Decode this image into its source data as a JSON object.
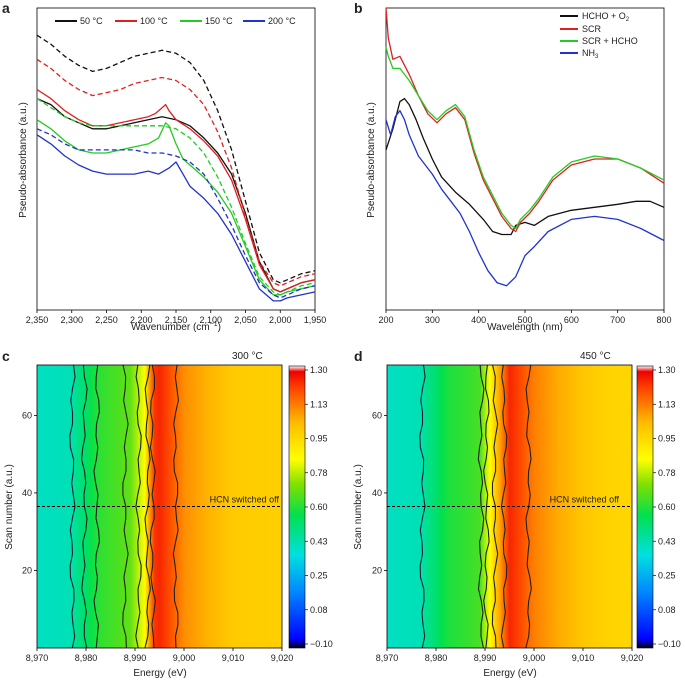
{
  "chart_data": [
    {
      "panel": "a",
      "type": "line",
      "xlabel": "Wavenumber (cm",
      "xlabel_sup": "−1",
      "xlabel_close": ")",
      "ylabel": "Pseudo-absorbance (a.u.)",
      "xlim": [
        2350,
        1950
      ],
      "ylim": [
        0,
        1
      ],
      "xticks": [
        2350,
        2300,
        2250,
        2200,
        2150,
        2100,
        2050,
        2000,
        1950
      ],
      "xtick_labels": [
        "2,350",
        "2,300",
        "2,250",
        "2,200",
        "2,150",
        "2,100",
        "2,050",
        "2,000",
        "1,950"
      ],
      "legend": "top",
      "legend_labels": [
        "50 °C",
        "100 °C",
        "150 °C",
        "200 °C"
      ],
      "series": [
        {
          "name": "50 °C",
          "color": "#111111",
          "dash": false,
          "x": [
            2350,
            2330,
            2310,
            2290,
            2270,
            2250,
            2230,
            2210,
            2190,
            2170,
            2150,
            2130,
            2110,
            2090,
            2070,
            2050,
            2030,
            2010,
            2000,
            1990,
            1970,
            1950
          ],
          "y": [
            0.7,
            0.68,
            0.64,
            0.62,
            0.6,
            0.6,
            0.61,
            0.62,
            0.63,
            0.64,
            0.63,
            0.61,
            0.57,
            0.52,
            0.45,
            0.32,
            0.16,
            0.07,
            0.06,
            0.07,
            0.09,
            0.1
          ]
        },
        {
          "name": "50 °C",
          "color": "#111111",
          "dash": true,
          "x": [
            2350,
            2330,
            2310,
            2290,
            2270,
            2250,
            2230,
            2210,
            2190,
            2170,
            2150,
            2130,
            2110,
            2090,
            2070,
            2050,
            2030,
            2010,
            2000,
            1990,
            1970,
            1950
          ],
          "y": [
            0.91,
            0.88,
            0.84,
            0.81,
            0.79,
            0.8,
            0.82,
            0.84,
            0.85,
            0.86,
            0.85,
            0.82,
            0.76,
            0.66,
            0.53,
            0.36,
            0.19,
            0.1,
            0.09,
            0.1,
            0.12,
            0.13
          ]
        },
        {
          "name": "100 °C",
          "color": "#e02020",
          "dash": false,
          "x": [
            2350,
            2330,
            2310,
            2290,
            2270,
            2250,
            2230,
            2210,
            2190,
            2180,
            2170,
            2165,
            2160,
            2150,
            2130,
            2110,
            2090,
            2070,
            2050,
            2030,
            2010,
            2000,
            1990,
            1970,
            1950
          ],
          "y": [
            0.73,
            0.7,
            0.66,
            0.63,
            0.61,
            0.61,
            0.62,
            0.63,
            0.64,
            0.65,
            0.67,
            0.68,
            0.66,
            0.63,
            0.6,
            0.56,
            0.51,
            0.43,
            0.3,
            0.15,
            0.07,
            0.06,
            0.07,
            0.09,
            0.1
          ]
        },
        {
          "name": "100 °C",
          "color": "#e02020",
          "dash": true,
          "x": [
            2350,
            2330,
            2310,
            2290,
            2270,
            2250,
            2230,
            2210,
            2190,
            2170,
            2150,
            2130,
            2110,
            2090,
            2070,
            2050,
            2030,
            2010,
            2000,
            1990,
            1970,
            1950
          ],
          "y": [
            0.83,
            0.8,
            0.76,
            0.73,
            0.71,
            0.72,
            0.73,
            0.75,
            0.76,
            0.77,
            0.76,
            0.73,
            0.68,
            0.59,
            0.47,
            0.31,
            0.16,
            0.09,
            0.08,
            0.09,
            0.11,
            0.12
          ]
        },
        {
          "name": "150 °C",
          "color": "#22cc22",
          "dash": false,
          "x": [
            2350,
            2330,
            2310,
            2290,
            2270,
            2250,
            2230,
            2210,
            2190,
            2175,
            2165,
            2160,
            2150,
            2140,
            2130,
            2110,
            2090,
            2070,
            2050,
            2030,
            2010,
            2000,
            1990,
            1970,
            1950
          ],
          "y": [
            0.63,
            0.6,
            0.56,
            0.53,
            0.52,
            0.52,
            0.53,
            0.54,
            0.55,
            0.57,
            0.62,
            0.61,
            0.55,
            0.5,
            0.48,
            0.44,
            0.39,
            0.32,
            0.21,
            0.1,
            0.05,
            0.05,
            0.06,
            0.07,
            0.08
          ]
        },
        {
          "name": "150 °C",
          "color": "#22cc22",
          "dash": true,
          "x": [
            2350,
            2330,
            2310,
            2290,
            2270,
            2250,
            2230,
            2210,
            2190,
            2170,
            2150,
            2130,
            2110,
            2090,
            2070,
            2050,
            2030,
            2010,
            2000,
            1990,
            1970,
            1950
          ],
          "y": [
            0.7,
            0.67,
            0.64,
            0.62,
            0.61,
            0.61,
            0.61,
            0.61,
            0.61,
            0.61,
            0.6,
            0.57,
            0.52,
            0.44,
            0.34,
            0.22,
            0.11,
            0.06,
            0.05,
            0.06,
            0.08,
            0.09
          ]
        },
        {
          "name": "200 °C",
          "color": "#2233cc",
          "dash": false,
          "x": [
            2350,
            2330,
            2310,
            2290,
            2270,
            2250,
            2230,
            2210,
            2190,
            2175,
            2160,
            2150,
            2140,
            2130,
            2110,
            2090,
            2070,
            2050,
            2030,
            2010,
            2000,
            1990,
            1970,
            1950
          ],
          "y": [
            0.58,
            0.55,
            0.51,
            0.48,
            0.46,
            0.45,
            0.45,
            0.45,
            0.46,
            0.45,
            0.47,
            0.49,
            0.45,
            0.41,
            0.37,
            0.32,
            0.25,
            0.16,
            0.07,
            0.03,
            0.03,
            0.04,
            0.05,
            0.06
          ]
        },
        {
          "name": "200 °C",
          "color": "#2233cc",
          "dash": true,
          "x": [
            2350,
            2330,
            2310,
            2290,
            2270,
            2250,
            2230,
            2210,
            2190,
            2170,
            2150,
            2130,
            2110,
            2090,
            2070,
            2050,
            2030,
            2010,
            2000,
            1990,
            1970,
            1950
          ],
          "y": [
            0.6,
            0.58,
            0.55,
            0.53,
            0.53,
            0.53,
            0.53,
            0.53,
            0.52,
            0.52,
            0.51,
            0.49,
            0.45,
            0.37,
            0.28,
            0.18,
            0.09,
            0.05,
            0.04,
            0.05,
            0.07,
            0.08
          ]
        }
      ]
    },
    {
      "panel": "b",
      "type": "line",
      "xlabel": "Wavelength (nm)",
      "ylabel": "Pseudo-absorbance (a.u.)",
      "xlim": [
        200,
        800
      ],
      "ylim": [
        0,
        1
      ],
      "xticks": [
        200,
        300,
        400,
        500,
        600,
        700,
        800
      ],
      "xtick_labels": [
        "200",
        "300",
        "400",
        "500",
        "600",
        "700",
        "800"
      ],
      "legend": "top-right",
      "legend_labels": [
        "HCHO + O",
        "SCR",
        "SCR + HCHO",
        "NH"
      ],
      "legend_subscripts": [
        "2",
        "",
        "",
        "3"
      ],
      "series": [
        {
          "name": "HCHO + O2",
          "color": "#111111",
          "x": [
            200,
            215,
            230,
            240,
            250,
            265,
            280,
            300,
            320,
            350,
            380,
            410,
            430,
            450,
            470,
            480,
            500,
            520,
            550,
            600,
            650,
            700,
            740,
            770,
            800
          ],
          "y": [
            0.53,
            0.6,
            0.69,
            0.7,
            0.68,
            0.63,
            0.57,
            0.5,
            0.44,
            0.39,
            0.35,
            0.3,
            0.26,
            0.25,
            0.25,
            0.28,
            0.29,
            0.28,
            0.31,
            0.33,
            0.34,
            0.35,
            0.36,
            0.36,
            0.34
          ]
        },
        {
          "name": "SCR",
          "color": "#e02020",
          "x": [
            200,
            205,
            215,
            230,
            250,
            270,
            290,
            310,
            330,
            350,
            370,
            390,
            410,
            430,
            450,
            470,
            480,
            490,
            510,
            530,
            560,
            600,
            650,
            700,
            750,
            800
          ],
          "y": [
            1.0,
            0.9,
            0.83,
            0.84,
            0.78,
            0.71,
            0.65,
            0.62,
            0.65,
            0.67,
            0.63,
            0.52,
            0.43,
            0.37,
            0.31,
            0.27,
            0.26,
            0.29,
            0.32,
            0.36,
            0.43,
            0.48,
            0.5,
            0.5,
            0.47,
            0.42
          ]
        },
        {
          "name": "SCR + HCHO",
          "color": "#22cc22",
          "x": [
            200,
            205,
            215,
            230,
            250,
            270,
            290,
            310,
            330,
            350,
            370,
            390,
            410,
            430,
            450,
            470,
            480,
            490,
            510,
            530,
            560,
            600,
            650,
            700,
            750,
            800
          ],
          "y": [
            0.87,
            0.84,
            0.8,
            0.8,
            0.76,
            0.71,
            0.66,
            0.63,
            0.66,
            0.68,
            0.64,
            0.53,
            0.44,
            0.38,
            0.32,
            0.28,
            0.27,
            0.3,
            0.33,
            0.37,
            0.44,
            0.49,
            0.51,
            0.5,
            0.47,
            0.43
          ]
        },
        {
          "name": "NH3",
          "color": "#2233cc",
          "x": [
            200,
            210,
            220,
            230,
            240,
            250,
            270,
            300,
            320,
            340,
            360,
            380,
            400,
            420,
            440,
            460,
            480,
            500,
            520,
            550,
            600,
            650,
            700,
            750,
            800
          ],
          "y": [
            0.63,
            0.58,
            0.64,
            0.66,
            0.63,
            0.58,
            0.51,
            0.45,
            0.4,
            0.36,
            0.32,
            0.26,
            0.19,
            0.13,
            0.09,
            0.08,
            0.11,
            0.18,
            0.21,
            0.26,
            0.3,
            0.31,
            0.3,
            0.27,
            0.23
          ]
        }
      ]
    },
    {
      "panel": "c",
      "type": "heatmap",
      "annotation": "300 °C",
      "marker_label": "HCN switched off",
      "marker_y": 36.5,
      "xlabel": "Energy (eV)",
      "ylabel": "Scan number (a.u.)",
      "xlim": [
        8970,
        9020
      ],
      "ylim": [
        0,
        73
      ],
      "xticks": [
        8970,
        8980,
        8990,
        9000,
        9010,
        9020
      ],
      "xtick_labels": [
        "8,970",
        "8,980",
        "8,990",
        "9,000",
        "9,010",
        "9,020"
      ],
      "yticks": [
        20,
        40,
        60
      ],
      "ytick_labels": [
        "20",
        "40",
        "60"
      ],
      "energy": [
        8970,
        8977,
        8978,
        8980,
        8981,
        8983,
        8986,
        8989,
        8992,
        8994,
        8995,
        8997,
        9000,
        9005,
        9010,
        9018,
        9020
      ],
      "intensity": [
        0.4,
        0.42,
        0.47,
        0.53,
        0.57,
        0.62,
        0.65,
        0.68,
        0.85,
        1.2,
        1.22,
        1.17,
        1.08,
        1.03,
        0.98,
        0.97,
        0.97
      ],
      "colorbar_ticks": [
        "1.30",
        "1.13",
        "0.95",
        "0.78",
        "0.60",
        "0.43",
        "0.25",
        "0.08",
        "−0.10"
      ],
      "colorbar_range": [
        -0.1,
        1.3
      ]
    },
    {
      "panel": "d",
      "type": "heatmap",
      "annotation": "450 °C",
      "marker_label": "HCN switched off",
      "marker_y": 36.5,
      "xlabel": "Energy (eV)",
      "ylabel": "Scan number (a.u.)",
      "xlim": [
        8970,
        9020
      ],
      "ylim": [
        0,
        73
      ],
      "xticks": [
        8970,
        8980,
        8990,
        9000,
        9010,
        9020
      ],
      "xtick_labels": [
        "8,970",
        "8,980",
        "8,990",
        "9,000",
        "9,010",
        "9,020"
      ],
      "yticks": [
        20,
        40,
        60
      ],
      "ytick_labels": [
        "20",
        "40",
        "60"
      ],
      "energy": [
        8970,
        8977,
        8978,
        8980,
        8981,
        8983,
        8986,
        8989,
        8991,
        8993,
        8995,
        8997,
        9000,
        9005,
        9010,
        9015,
        9020
      ],
      "intensity": [
        0.4,
        0.42,
        0.47,
        0.52,
        0.56,
        0.6,
        0.62,
        0.65,
        0.85,
        1.05,
        1.22,
        1.18,
        1.1,
        1.04,
        0.99,
        0.96,
        0.95
      ],
      "colorbar_ticks": [
        "1.30",
        "1.13",
        "0.95",
        "0.78",
        "0.60",
        "0.43",
        "0.25",
        "0.08",
        "−0.10"
      ],
      "colorbar_range": [
        -0.1,
        1.3
      ]
    }
  ]
}
